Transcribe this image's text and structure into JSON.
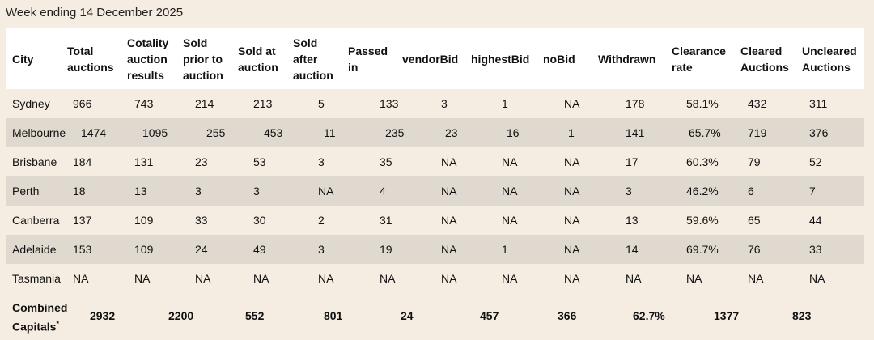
{
  "caption": "Week ending 14 December 2025",
  "headers": [
    "City",
    "Total auctions",
    "Cotality auction results",
    "Sold prior to auction",
    "Sold at auction",
    "Sold after auction",
    "Passed in",
    "vendorBid",
    "highestBid",
    "noBid",
    "Withdrawn",
    "Clearance rate",
    "Cleared Auctions",
    "Uncleared Auctions"
  ],
  "header_lines": [
    [
      "City"
    ],
    [
      "Total",
      "auctions"
    ],
    [
      "Cotality",
      "auction",
      "results"
    ],
    [
      "Sold",
      "prior to",
      "auction"
    ],
    [
      "Sold at",
      "auction"
    ],
    [
      "Sold",
      "after",
      "auction"
    ],
    [
      "Passed",
      "in"
    ],
    [
      "vendorBid"
    ],
    [
      "highestBid"
    ],
    [
      "noBid"
    ],
    [
      "Withdrawn"
    ],
    [
      "Clearance",
      "rate"
    ],
    [
      "Cleared",
      "Auctions"
    ],
    [
      "Uncleared",
      "Auctions"
    ]
  ],
  "rows": [
    [
      "Sydney",
      "966",
      "743",
      "214",
      "213",
      "5",
      "133",
      "3",
      "1",
      "NA",
      "178",
      "58.1%",
      "432",
      "311"
    ],
    [
      "Melbourne",
      "1474",
      "1095",
      "255",
      "453",
      "11",
      "235",
      "23",
      "16",
      "1",
      "141",
      "65.7%",
      "719",
      "376"
    ],
    [
      "Brisbane",
      "184",
      "131",
      "23",
      "53",
      "3",
      "35",
      "NA",
      "NA",
      "NA",
      "17",
      "60.3%",
      "79",
      "52"
    ],
    [
      "Perth",
      "18",
      "13",
      "3",
      "3",
      "NA",
      "4",
      "NA",
      "NA",
      "NA",
      "3",
      "46.2%",
      "6",
      "7"
    ],
    [
      "Canberra",
      "137",
      "109",
      "33",
      "30",
      "2",
      "31",
      "NA",
      "NA",
      "NA",
      "13",
      "59.6%",
      "65",
      "44"
    ],
    [
      "Adelaide",
      "153",
      "109",
      "24",
      "49",
      "3",
      "19",
      "NA",
      "1",
      "NA",
      "14",
      "69.7%",
      "76",
      "33"
    ],
    [
      "Tasmania",
      "NA",
      "NA",
      "NA",
      "NA",
      "NA",
      "NA",
      "NA",
      "NA",
      "NA",
      "NA",
      "NA",
      "NA",
      "NA"
    ]
  ],
  "combined": {
    "label_lines": [
      "Combined",
      "Capitals"
    ],
    "footnote_mark": "*",
    "values": [
      "2932",
      "2200",
      "552",
      "801",
      "24",
      "457",
      "366",
      "62.7%",
      "1377",
      "823"
    ]
  }
}
